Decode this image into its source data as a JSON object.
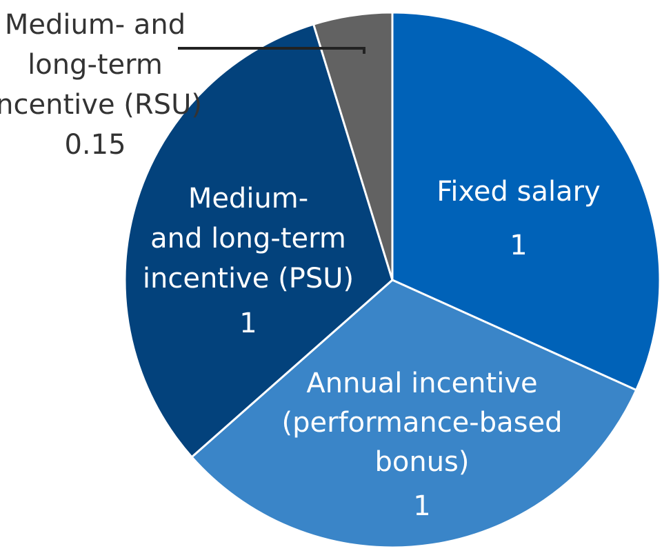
{
  "chart_data": {
    "type": "pie",
    "slices": [
      {
        "label_lines": [
          "Fixed salary"
        ],
        "value_text": "1",
        "value": 1,
        "color": "#0062b8"
      },
      {
        "label_lines": [
          "Annual incentive",
          "(performance-based",
          "bonus)"
        ],
        "value_text": "1",
        "value": 1,
        "color": "#3a85c8"
      },
      {
        "label_lines": [
          "Medium-",
          "and long-term",
          "incentive (PSU)"
        ],
        "value_text": "1",
        "value": 1,
        "color": "#03427c"
      },
      {
        "label_lines": [
          "Medium- and",
          "long-term",
          "incentive (RSU)"
        ],
        "value_text": "0.15",
        "value": 0.15,
        "color": "#626262"
      }
    ],
    "start_angle_deg": 0,
    "direction": "clockwise",
    "slice_border_color": "#ffffff",
    "leader_line_color": "#222222"
  }
}
